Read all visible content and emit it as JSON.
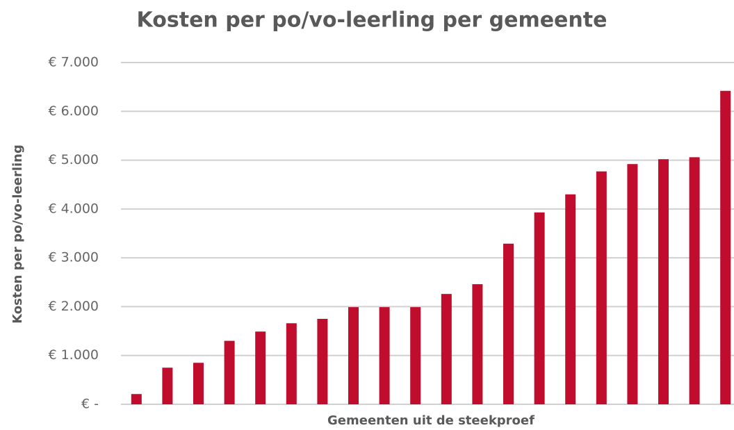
{
  "chart_data": {
    "type": "bar",
    "title": "Kosten per po/vo-leerling per gemeente",
    "x_label": "Gemeenten uit de steekproef",
    "y_label": "Kosten per po/vo-leerling",
    "categories": [
      null,
      null,
      null,
      null,
      null,
      null,
      null,
      null,
      null,
      null,
      null,
      null,
      null,
      null,
      null,
      null,
      null,
      null,
      null,
      null
    ],
    "values": [
      210,
      750,
      850,
      1300,
      1490,
      1660,
      1750,
      1990,
      1990,
      1990,
      2260,
      2460,
      3290,
      3930,
      4300,
      4770,
      4920,
      5020,
      5060,
      6420
    ],
    "color": "#c00d2e",
    "ylim": [
      0,
      7000
    ],
    "yticks": [
      {
        "value": 0,
        "label": "€ -"
      },
      {
        "value": 1000,
        "label": "€ 1.000"
      },
      {
        "value": 2000,
        "label": "€ 2.000"
      },
      {
        "value": 3000,
        "label": "€ 3.000"
      },
      {
        "value": 4000,
        "label": "€ 4.000"
      },
      {
        "value": 5000,
        "label": "€ 5.000"
      },
      {
        "value": 6000,
        "label": "€ 6.000"
      },
      {
        "value": 7000,
        "label": "€ 7.000"
      }
    ],
    "grid": true
  }
}
